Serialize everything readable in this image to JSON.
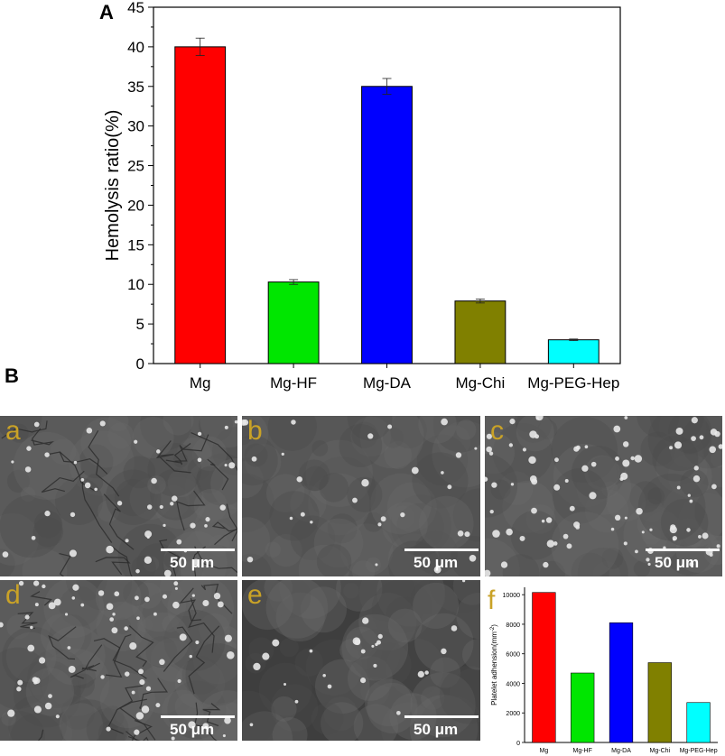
{
  "panels": {
    "A": "A",
    "B": "B"
  },
  "chart_data": [
    {
      "type": "bar",
      "panel": "A",
      "categories": [
        "Mg",
        "Mg-HF",
        "Mg-DA",
        "Mg-Chi",
        "Mg-PEG-Hep"
      ],
      "values": [
        40.0,
        10.3,
        35.0,
        7.9,
        3.0
      ],
      "errors": [
        1.1,
        0.3,
        1.0,
        0.25,
        0.1
      ],
      "colors": [
        "#ff0000",
        "#00e600",
        "#0000ff",
        "#808000",
        "#00ffff"
      ],
      "ylabel": "Hemolysis ratio(%)",
      "xlabel": "",
      "ylim": [
        0,
        45
      ],
      "yticks": [
        0,
        5,
        10,
        15,
        20,
        25,
        30,
        35,
        40,
        45
      ],
      "grid": false
    },
    {
      "type": "bar",
      "panel": "f",
      "categories": [
        "Mg",
        "Mg-HF",
        "Mg-DA",
        "Mg-Chi",
        "Mg-PEG-Hep"
      ],
      "values": [
        10150,
        4700,
        8100,
        5400,
        2700
      ],
      "colors": [
        "#ff0000",
        "#00e600",
        "#0000ff",
        "#808000",
        "#00ffff"
      ],
      "ylabel": "Platelet adhension(mm",
      "ylabel_sup": "-2",
      "ylabel_end": ")",
      "xlabel": "",
      "ylim": [
        0,
        10500
      ],
      "yticks": [
        0,
        2000,
        4000,
        6000,
        8000,
        10000
      ],
      "grid": false
    }
  ],
  "sem_images": [
    {
      "letter": "a",
      "scale": "50 μm",
      "tone": "#5a5a5a"
    },
    {
      "letter": "b",
      "scale": "50 μm",
      "tone": "#575757"
    },
    {
      "letter": "c",
      "scale": "50 μm",
      "tone": "#5c5c5c"
    },
    {
      "letter": "d",
      "scale": "50 μm",
      "tone": "#5b5b5b"
    },
    {
      "letter": "e",
      "scale": "50 μm",
      "tone": "#3e3e3e"
    }
  ],
  "f_letter": "f"
}
